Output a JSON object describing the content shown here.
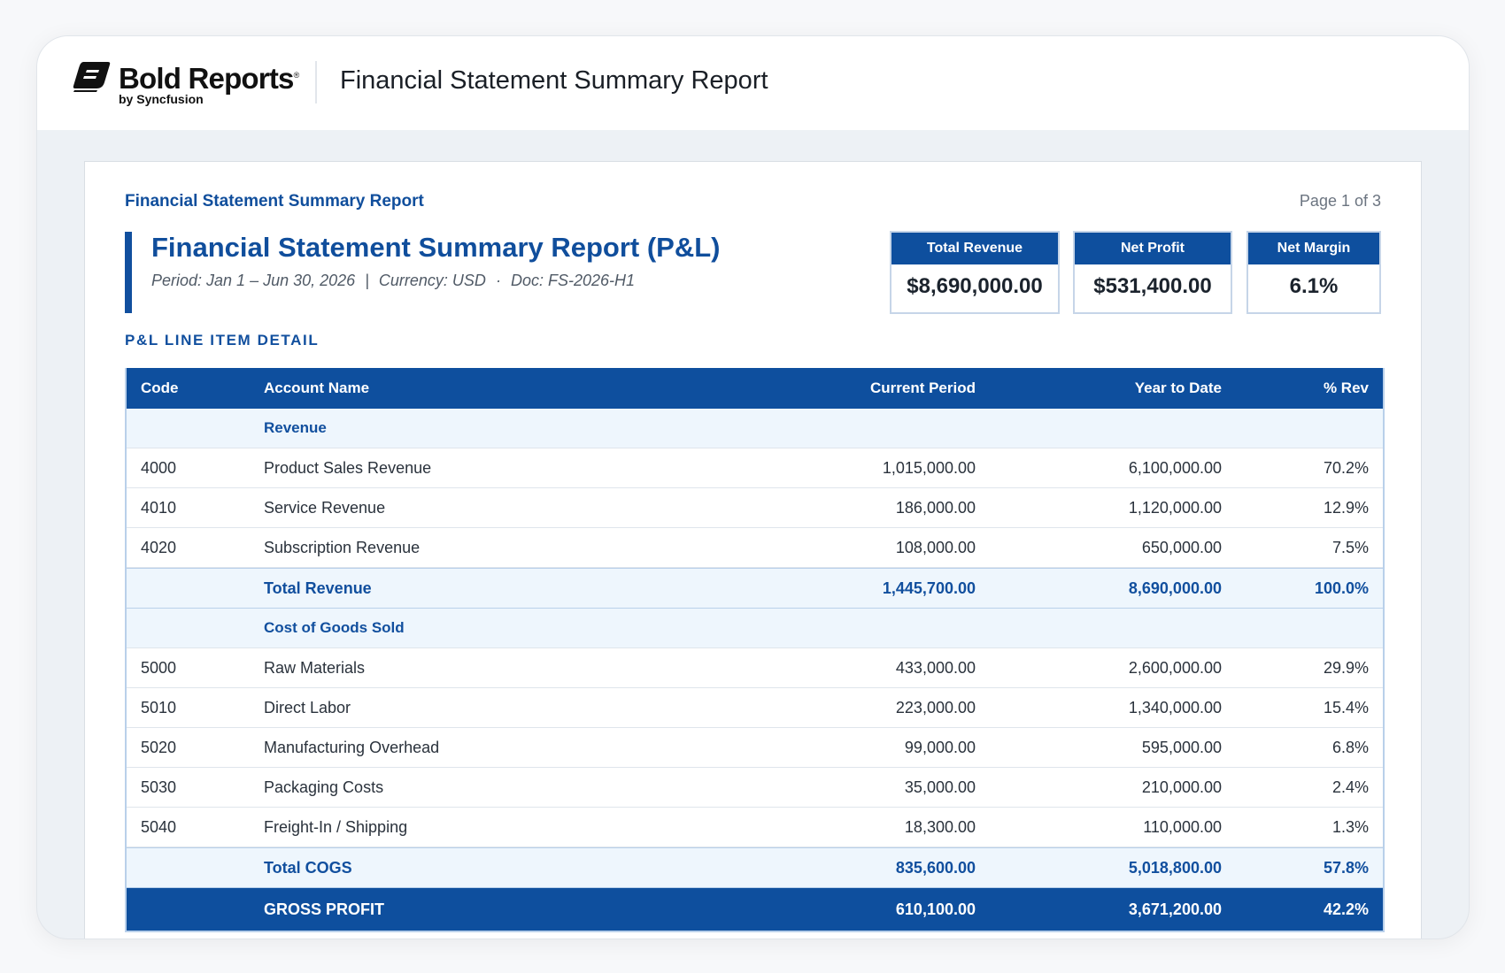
{
  "app": {
    "brand_name": "Bold Reports",
    "brand_registered": "®",
    "brand_sub": "by Syncfusion",
    "title": "Financial Statement Summary Report"
  },
  "report": {
    "label": "Financial Statement Summary Report",
    "page_indicator": "Page 1 of 3",
    "title": "Financial Statement Summary Report (P&L)",
    "period": "Period: Jan 1 – Jun 30, 2026",
    "currency": "Currency: USD",
    "doc": "Doc: FS-2026-H1",
    "sep_bar": "|",
    "sep_dot": "·",
    "section_heading": "P&L LINE ITEM DETAIL"
  },
  "kpis": [
    {
      "label": "Total Revenue",
      "value": "$8,690,000.00"
    },
    {
      "label": "Net Profit",
      "value": "$531,400.00"
    },
    {
      "label": "Net Margin",
      "value": "6.1%"
    }
  ],
  "table": {
    "columns": [
      "Code",
      "Account Name",
      "Current Period",
      "Year to Date",
      "% Rev"
    ],
    "rows": [
      {
        "type": "group",
        "code": "",
        "name": "Revenue",
        "current": "",
        "ytd": "",
        "pct": ""
      },
      {
        "type": "item",
        "code": "4000",
        "name": "Product Sales Revenue",
        "current": "1,015,000.00",
        "ytd": "6,100,000.00",
        "pct": "70.2%"
      },
      {
        "type": "item",
        "code": "4010",
        "name": "Service Revenue",
        "current": "186,000.00",
        "ytd": "1,120,000.00",
        "pct": "12.9%"
      },
      {
        "type": "item",
        "code": "4020",
        "name": "Subscription Revenue",
        "current": "108,000.00",
        "ytd": "650,000.00",
        "pct": "7.5%"
      },
      {
        "type": "total",
        "code": "",
        "name": "Total Revenue",
        "current": "1,445,700.00",
        "ytd": "8,690,000.00",
        "pct": "100.0%"
      },
      {
        "type": "group",
        "code": "",
        "name": "Cost of Goods Sold",
        "current": "",
        "ytd": "",
        "pct": ""
      },
      {
        "type": "item",
        "code": "5000",
        "name": "Raw Materials",
        "current": "433,000.00",
        "ytd": "2,600,000.00",
        "pct": "29.9%"
      },
      {
        "type": "item",
        "code": "5010",
        "name": "Direct Labor",
        "current": "223,000.00",
        "ytd": "1,340,000.00",
        "pct": "15.4%"
      },
      {
        "type": "item",
        "code": "5020",
        "name": "Manufacturing Overhead",
        "current": "99,000.00",
        "ytd": "595,000.00",
        "pct": "6.8%"
      },
      {
        "type": "item",
        "code": "5030",
        "name": "Packaging Costs",
        "current": "35,000.00",
        "ytd": "210,000.00",
        "pct": "2.4%"
      },
      {
        "type": "item",
        "code": "5040",
        "name": "Freight-In / Shipping",
        "current": "18,300.00",
        "ytd": "110,000.00",
        "pct": "1.3%"
      },
      {
        "type": "total",
        "code": "",
        "name": "Total COGS",
        "current": "835,600.00",
        "ytd": "5,018,800.00",
        "pct": "57.8%"
      },
      {
        "type": "gross",
        "code": "",
        "name": "GROSS PROFIT",
        "current": "610,100.00",
        "ytd": "3,671,200.00",
        "pct": "42.2%"
      }
    ]
  },
  "colors": {
    "primary": "#0e4f9e",
    "row_band": "#eef6fd",
    "border": "#b9d0ea"
  },
  "icons": {
    "brand": "bold-reports-logo-icon"
  }
}
